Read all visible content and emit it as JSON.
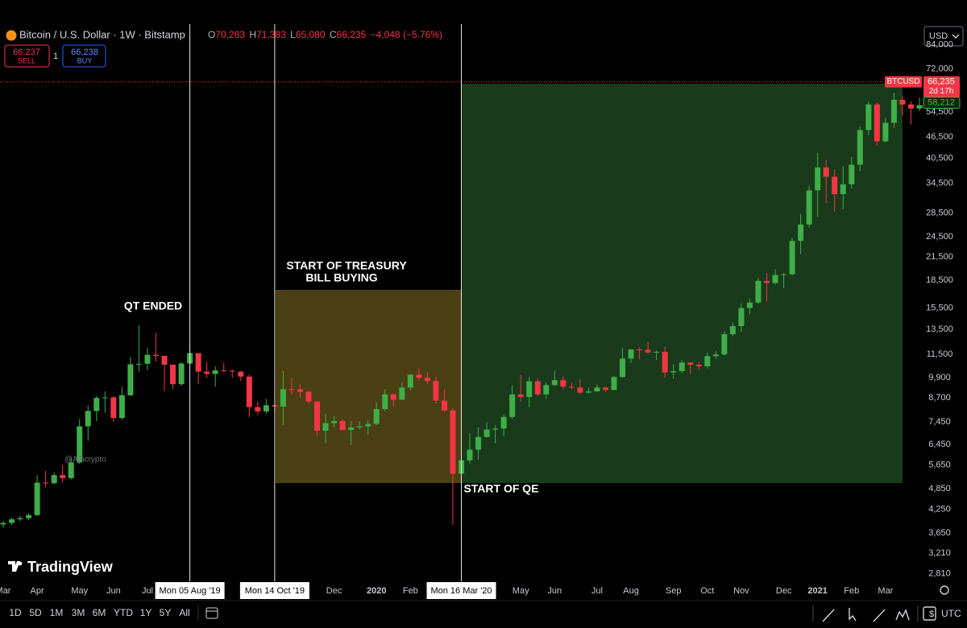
{
  "header": {
    "symbol": "Bitcoin / U.S. Dollar · 1W · Bitstamp",
    "ohlc": [
      {
        "key": "O",
        "value": "70,283"
      },
      {
        "key": "H",
        "value": "71,383"
      },
      {
        "key": "L",
        "value": "65,080"
      },
      {
        "key": "C",
        "value": "66,235"
      }
    ],
    "change": "−4,048 (−5.76%)",
    "sell": {
      "price": "66,237",
      "label": "SELL"
    },
    "quantity": "1",
    "buy": {
      "price": "66,238",
      "label": "BUY"
    },
    "currency": "USD"
  },
  "watermark": "@Ajhcrypto",
  "logo": "TradingView",
  "toolbar": {
    "ranges": [
      "1D",
      "5D",
      "1M",
      "3M",
      "6M",
      "YTD",
      "1Y",
      "5Y",
      "All"
    ],
    "timezone": "UTC"
  },
  "chart_data": {
    "type": "candlestick",
    "log_scale": true,
    "up_color": "#3fae49",
    "down_color": "#f23645",
    "x": [
      "2019-03-04",
      "2019-03-11",
      "2019-03-18",
      "2019-03-25",
      "2019-04-01",
      "2019-04-08",
      "2019-04-15",
      "2019-04-22",
      "2019-04-29",
      "2019-05-06",
      "2019-05-13",
      "2019-05-20",
      "2019-05-27",
      "2019-06-03",
      "2019-06-10",
      "2019-06-17",
      "2019-06-24",
      "2019-07-01",
      "2019-07-08",
      "2019-07-15",
      "2019-07-22",
      "2019-07-29",
      "2019-08-05",
      "2019-08-12",
      "2019-08-19",
      "2019-08-26",
      "2019-09-02",
      "2019-09-09",
      "2019-09-16",
      "2019-09-23",
      "2019-09-30",
      "2019-10-07",
      "2019-10-14",
      "2019-10-21",
      "2019-10-28",
      "2019-11-04",
      "2019-11-11",
      "2019-11-18",
      "2019-11-25",
      "2019-12-02",
      "2019-12-09",
      "2019-12-16",
      "2019-12-23",
      "2019-12-30",
      "2020-01-06",
      "2020-01-13",
      "2020-01-20",
      "2020-01-27",
      "2020-02-03",
      "2020-02-10",
      "2020-02-17",
      "2020-02-24",
      "2020-03-02",
      "2020-03-09",
      "2020-03-16",
      "2020-03-23",
      "2020-03-30",
      "2020-04-06",
      "2020-04-13",
      "2020-04-20",
      "2020-04-27",
      "2020-05-04",
      "2020-05-11",
      "2020-05-18",
      "2020-05-25",
      "2020-06-01",
      "2020-06-08",
      "2020-06-15",
      "2020-06-22",
      "2020-06-29",
      "2020-07-06",
      "2020-07-13",
      "2020-07-20",
      "2020-07-27",
      "2020-08-03",
      "2020-08-10",
      "2020-08-17",
      "2020-08-24",
      "2020-08-31",
      "2020-09-07",
      "2020-09-14",
      "2020-09-21",
      "2020-09-28",
      "2020-10-05",
      "2020-10-12",
      "2020-10-19",
      "2020-10-26",
      "2020-11-02",
      "2020-11-09",
      "2020-11-16",
      "2020-11-23",
      "2020-11-30",
      "2020-12-07",
      "2020-12-14",
      "2020-12-21",
      "2020-12-28",
      "2021-01-04",
      "2021-01-11",
      "2021-01-18",
      "2021-01-25",
      "2021-02-01",
      "2021-02-08",
      "2021-02-15",
      "2021-02-22",
      "2021-03-01",
      "2021-03-08",
      "2021-03-15",
      "2021-03-22",
      "2021-03-29"
    ],
    "open": [
      3860,
      3900,
      3990,
      4020,
      4100,
      5050,
      5030,
      5300,
      5200,
      5750,
      7250,
      8000,
      8700,
      8730,
      7650,
      8850,
      10800,
      10830,
      11480,
      11400,
      10770,
      9500,
      10850,
      11600,
      10300,
      10150,
      10380,
      10360,
      10300,
      9980,
      8200,
      7980,
      8300,
      8230,
      9200,
      9190,
      9050,
      8500,
      7050,
      7400,
      7500,
      7080,
      7200,
      7250,
      7360,
      8100,
      8900,
      8600,
      9300,
      10100,
      9900,
      9700,
      8550,
      8030,
      5350,
      5830,
      6240,
      6770,
      7100,
      7150,
      7700,
      8900,
      8750,
      9680,
      8900,
      9450,
      9750,
      9350,
      9300,
      9000,
      9070,
      9300,
      9160,
      9950,
      11200,
      11880,
      11850,
      11650,
      11700,
      10250,
      10330,
      10920,
      10770,
      10660,
      11380,
      11500,
      13100,
      13800,
      15500,
      16050,
      18450,
      18200,
      19150,
      19250,
      23850,
      26500,
      33000,
      38200,
      36000,
      32200,
      34300,
      38900,
      48600,
      57300,
      45200,
      50900,
      59000,
      57300,
      55800
    ],
    "high": [
      3950,
      4030,
      4080,
      4150,
      5300,
      5450,
      5400,
      5650,
      5900,
      7600,
      8300,
      8800,
      9080,
      8800,
      9350,
      11300,
      13880,
      12000,
      13200,
      11400,
      10800,
      10950,
      12300,
      11600,
      10950,
      10650,
      10900,
      10450,
      10350,
      10100,
      8500,
      8650,
      8400,
      10350,
      9900,
      9500,
      9100,
      8500,
      7850,
      7750,
      7600,
      7500,
      7500,
      7550,
      8450,
      9200,
      8950,
      9600,
      10150,
      10500,
      10300,
      9950,
      9180,
      8150,
      6900,
      6950,
      7200,
      7450,
      7300,
      7800,
      9450,
      10070,
      9950,
      9850,
      9600,
      10380,
      10000,
      9600,
      9800,
      9300,
      9480,
      9350,
      10000,
      12000,
      11900,
      12050,
      12450,
      11800,
      12100,
      10800,
      11100,
      10950,
      10950,
      11650,
      11750,
      13350,
      14100,
      15950,
      16450,
      18800,
      19450,
      19900,
      19400,
      24300,
      28400,
      34000,
      42000,
      40100,
      37800,
      38500,
      40900,
      49700,
      58300,
      58000,
      52600,
      61800,
      60500,
      58500,
      59800
    ],
    "low": [
      3780,
      3850,
      3940,
      3970,
      4080,
      4900,
      5000,
      5050,
      5150,
      5700,
      6600,
      7500,
      7900,
      7450,
      7550,
      8800,
      10300,
      10400,
      11000,
      9100,
      9200,
      9400,
      10800,
      9500,
      9900,
      9350,
      10300,
      9900,
      9700,
      7700,
      7800,
      7850,
      7950,
      7300,
      8900,
      8700,
      8400,
      6800,
      6500,
      7200,
      7050,
      6430,
      7100,
      6850,
      7300,
      8000,
      8250,
      8600,
      9150,
      9700,
      9500,
      8400,
      7950,
      3850,
      4450,
      5700,
      5850,
      6750,
      6500,
      6800,
      7600,
      8500,
      8200,
      8800,
      8650,
      9400,
      9200,
      9200,
      8900,
      8950,
      9050,
      9050,
      9130,
      9900,
      10900,
      11150,
      11550,
      11100,
      9900,
      9850,
      10200,
      10150,
      10400,
      10520,
      11200,
      11400,
      12950,
      13300,
      14900,
      15900,
      16200,
      18000,
      17600,
      19100,
      21900,
      26000,
      27800,
      30400,
      28800,
      29200,
      33400,
      37300,
      47100,
      44000,
      44900,
      49300,
      53300,
      50400,
      54800
    ],
    "close": [
      3900,
      3990,
      4020,
      4100,
      5050,
      5030,
      5300,
      5200,
      5750,
      7250,
      8000,
      8700,
      8730,
      7650,
      8850,
      10800,
      10830,
      11480,
      11400,
      10770,
      9500,
      10850,
      11600,
      10300,
      10150,
      10380,
      10360,
      10300,
      9980,
      8200,
      7980,
      8300,
      8230,
      9200,
      9190,
      9050,
      8500,
      7050,
      7400,
      7500,
      7080,
      7200,
      7250,
      7360,
      8100,
      8900,
      8600,
      9300,
      10100,
      9900,
      9700,
      8550,
      8030,
      5350,
      5830,
      6240,
      6770,
      7100,
      7150,
      7700,
      8900,
      8750,
      9680,
      8900,
      9450,
      9750,
      9350,
      9300,
      9000,
      9070,
      9300,
      9160,
      9950,
      11200,
      11880,
      11850,
      11650,
      11700,
      10250,
      10330,
      10920,
      10770,
      10660,
      11380,
      11500,
      13100,
      13800,
      15500,
      16050,
      18450,
      18200,
      19150,
      19250,
      23850,
      26500,
      33000,
      38200,
      36000,
      32200,
      34300,
      38900,
      48600,
      57300,
      45200,
      50900,
      59000,
      57300,
      55800,
      57000
    ],
    "ylim": [
      2680,
      112000
    ],
    "yticks": [
      {
        "value": 2810,
        "label": "2,810"
      },
      {
        "value": 3210,
        "label": "3,210"
      },
      {
        "value": 3650,
        "label": "3,650"
      },
      {
        "value": 4250,
        "label": "4,250"
      },
      {
        "value": 4850,
        "label": "4,850"
      },
      {
        "value": 5650,
        "label": "5,650"
      },
      {
        "value": 6450,
        "label": "6,450"
      },
      {
        "value": 7450,
        "label": "7,450"
      },
      {
        "value": 8700,
        "label": "8,700"
      },
      {
        "value": 9900,
        "label": "9,900"
      },
      {
        "value": 11500,
        "label": "11,500"
      },
      {
        "value": 13500,
        "label": "13,500"
      },
      {
        "value": 15500,
        "label": "15,500"
      },
      {
        "value": 18500,
        "label": "18,500"
      },
      {
        "value": 21500,
        "label": "21,500"
      },
      {
        "value": 24500,
        "label": "24,500"
      },
      {
        "value": 28500,
        "label": "28,500"
      },
      {
        "value": 34500,
        "label": "34,500"
      },
      {
        "value": 40500,
        "label": "40,500"
      },
      {
        "value": 46500,
        "label": "46,500"
      },
      {
        "value": 54500,
        "label": "54,500"
      },
      {
        "value": 72000,
        "label": "72,000"
      },
      {
        "value": 84000,
        "label": "84,000"
      }
    ],
    "xticks": [
      {
        "value": "2019-03-04",
        "label": "Mar"
      },
      {
        "value": "2019-04-01",
        "label": "Apr"
      },
      {
        "value": "2019-05-06",
        "label": "May"
      },
      {
        "value": "2019-06-03",
        "label": "Jun"
      },
      {
        "value": "2019-07-01",
        "label": "Jul"
      },
      {
        "value": "2019-12-02",
        "label": "Dec"
      },
      {
        "value": "2020-01-06",
        "label": "2020"
      },
      {
        "value": "2020-02-03",
        "label": "Feb"
      },
      {
        "value": "2020-05-04",
        "label": "May"
      },
      {
        "value": "2020-06-01",
        "label": "Jun"
      },
      {
        "value": "2020-07-06",
        "label": "Jul"
      },
      {
        "value": "2020-08-03",
        "label": "Aug"
      },
      {
        "value": "2020-09-07",
        "label": "Sep"
      },
      {
        "value": "2020-10-05",
        "label": "Oct"
      },
      {
        "value": "2020-11-02",
        "label": "Nov"
      },
      {
        "value": "2020-12-07",
        "label": "Dec"
      },
      {
        "value": "2021-01-04",
        "label": "2021"
      },
      {
        "value": "2021-02-01",
        "label": "Feb"
      },
      {
        "value": "2021-03-01",
        "label": "Mar"
      }
    ],
    "markers": [
      {
        "date": "2019-08-05",
        "label": "Mon 05 Aug '19"
      },
      {
        "date": "2019-10-14",
        "label": "Mon 14 Oct '19"
      },
      {
        "date": "2020-03-16",
        "label": "Mon 16 Mar '20"
      }
    ],
    "annotations": [
      "QT ENDED",
      "START OF TREASURY",
      "BILL BUYING",
      "START OF QE"
    ],
    "last_price": {
      "label": "BTCUSD",
      "value": 66235,
      "value_label": "66,235",
      "countdown": "2d 17h"
    },
    "marked_price": {
      "value": 58212,
      "value_label": "58,212"
    }
  }
}
